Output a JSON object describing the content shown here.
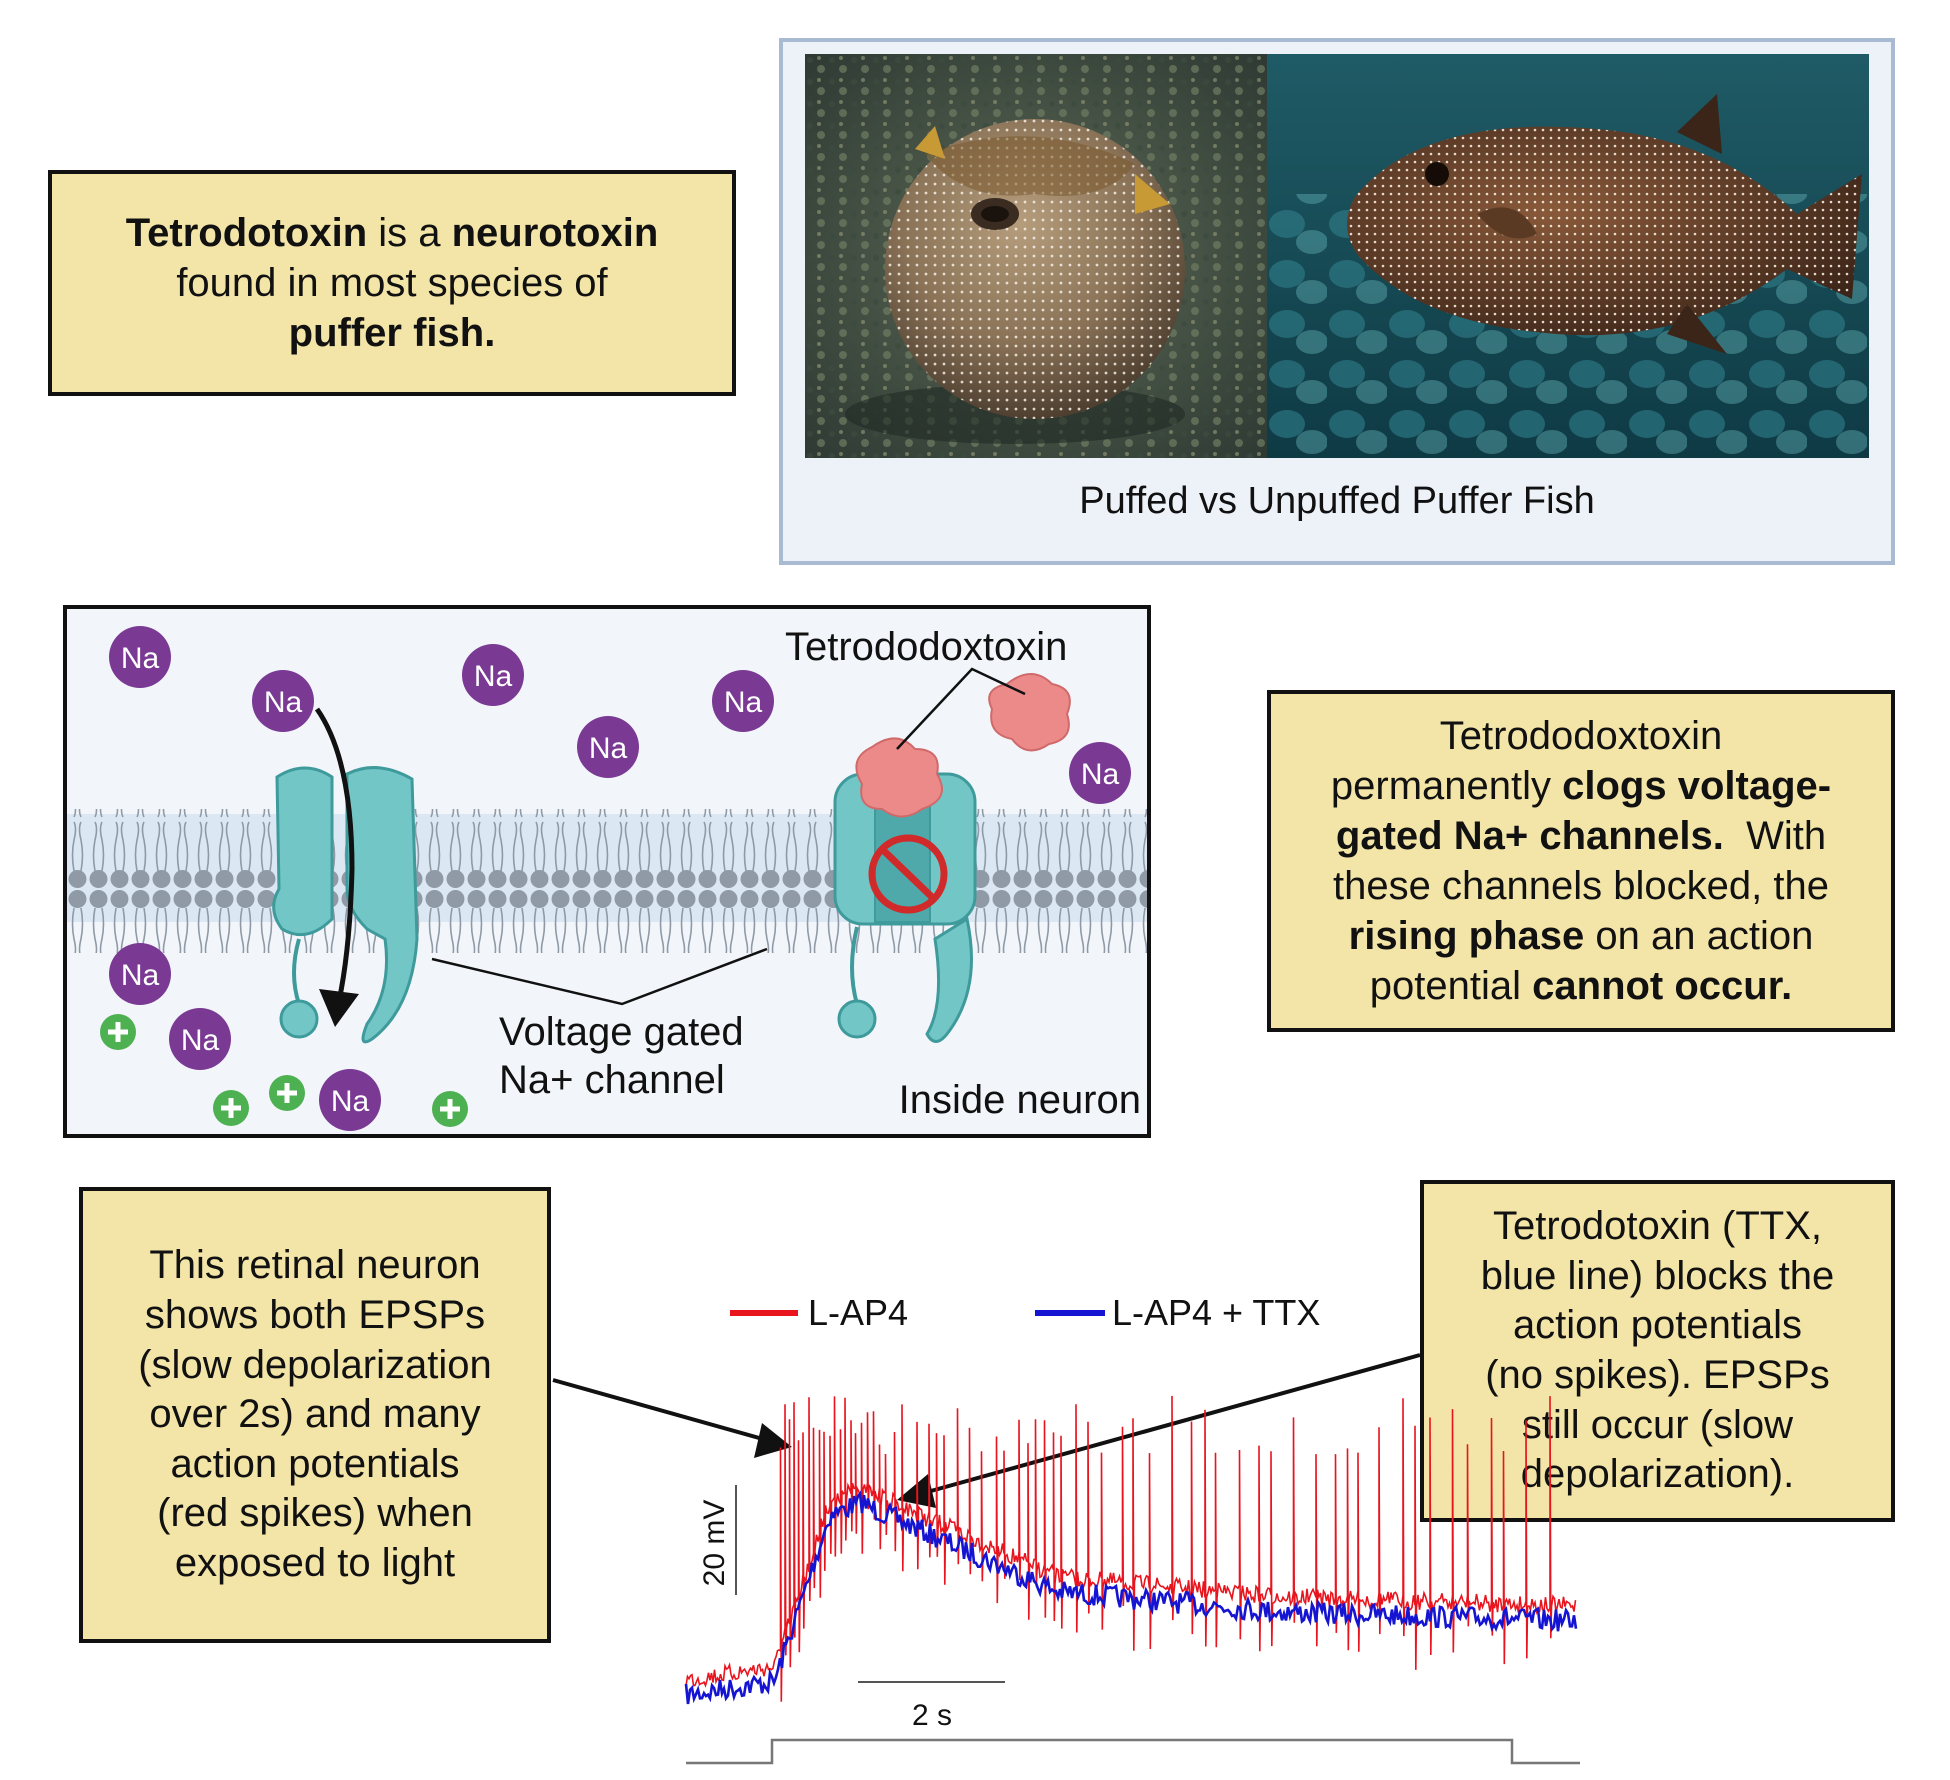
{
  "top_box": {
    "w1": "Tetrodotoxin",
    "w2": " is a ",
    "w3": "neurotoxin",
    "w4": "found in most species of",
    "w5": "puffer fish."
  },
  "photo": {
    "caption": "Puffed vs Unpuffed Puffer Fish"
  },
  "diagram": {
    "ion_label": "Na",
    "toxin_label": "Tetrododoxtoxin",
    "channel_label_1": "Voltage gated",
    "channel_label_2": "Na+ channel",
    "inside_label": "Inside neuron"
  },
  "right_box": {
    "t1": "Tetrododoxtoxin",
    "t2": "permanently ",
    "t3": "clogs voltage-",
    "t4": "gated Na+ channels.",
    "t5": "  With",
    "t6": "these channels blocked, the",
    "t7": "rising phase",
    "t8": " on an action",
    "t9": "potential ",
    "t10": "cannot occur."
  },
  "left_box": {
    "l1": "This retinal neuron",
    "l2": "shows both EPSPs",
    "l3": "(slow depolarization",
    "l4": "over 2s) and many",
    "l5": "action potentials",
    "l6": "(red spikes) when",
    "l7": "exposed to light"
  },
  "ttx_box": {
    "l1": "Tetrodotoxin (TTX,",
    "l2": "blue line) blocks the",
    "l3": "action potentials",
    "l4": "(no spikes). EPSPs",
    "l5": "still occur (slow",
    "l6": "depolarization)."
  },
  "chart_data": {
    "type": "line",
    "series": [
      {
        "name": "L-AP4",
        "color": "#e8141e"
      },
      {
        "name": "L-AP4 + TTX",
        "color": "#1414d2"
      }
    ],
    "scale_bar_y": "20 mV",
    "scale_bar_x": "2 s",
    "xlabel": "",
    "ylabel": ""
  }
}
